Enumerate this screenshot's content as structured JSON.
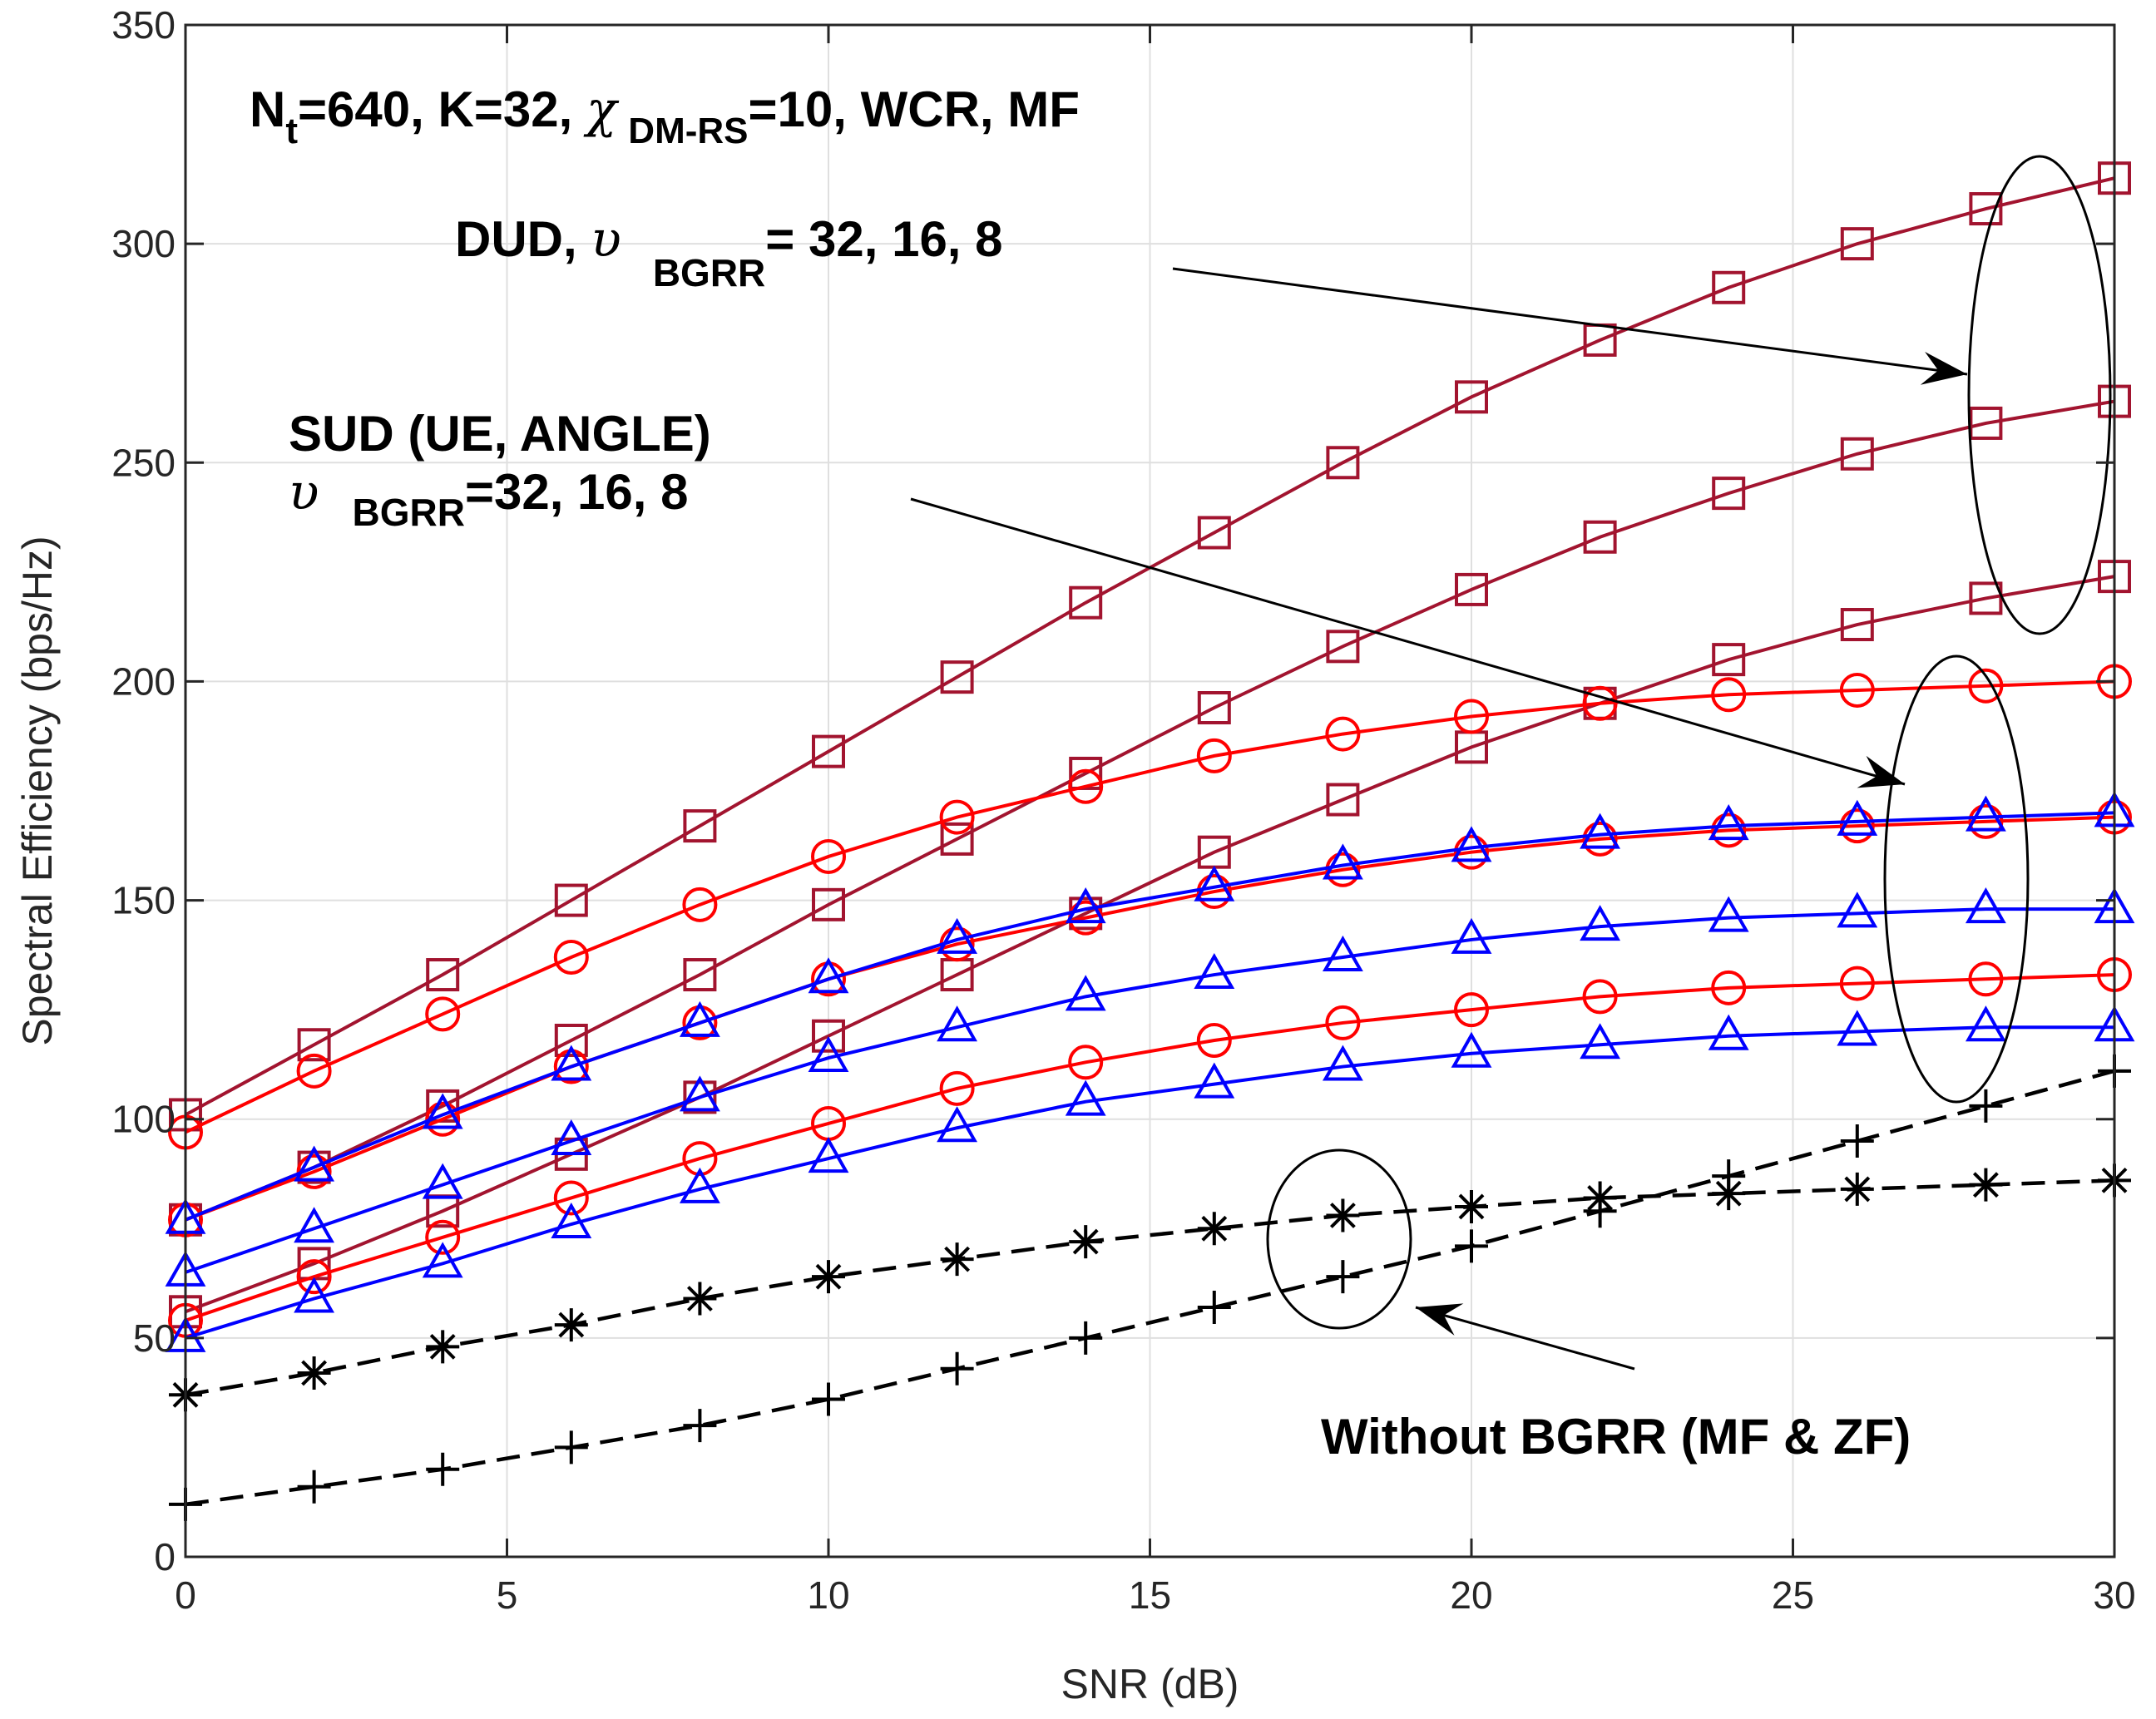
{
  "chart_data": {
    "type": "line",
    "xlabel": "SNR (dB)",
    "ylabel": "Spectral Efficiency (bps/Hz)",
    "xlim": [
      0,
      30
    ],
    "ylim": [
      0,
      350
    ],
    "xticks": [
      0,
      5,
      10,
      15,
      20,
      25,
      30
    ],
    "yticks": [
      0,
      50,
      100,
      150,
      200,
      250,
      300,
      350
    ],
    "ytick_labels": [
      "0",
      "50",
      "100",
      "150",
      "200",
      "250",
      "300",
      "350"
    ],
    "grid": true,
    "x": [
      0,
      2,
      4,
      6,
      8,
      10,
      12,
      14,
      16,
      18,
      20,
      22,
      24,
      26,
      28,
      30
    ],
    "series": [
      {
        "name": "DUD, v_BGRR=32",
        "color": "#a2142f",
        "marker": "square",
        "dash": "solid",
        "values": [
          101,
          117,
          133,
          150,
          167,
          184,
          201,
          218,
          234,
          250,
          265,
          278,
          290,
          300,
          308,
          315
        ]
      },
      {
        "name": "DUD, v_BGRR=16",
        "color": "#a2142f",
        "marker": "square",
        "dash": "solid",
        "values": [
          77,
          89,
          103,
          118,
          133,
          149,
          164,
          179,
          194,
          208,
          221,
          233,
          243,
          252,
          259,
          264
        ]
      },
      {
        "name": "DUD, v_BGRR=8",
        "color": "#a2142f",
        "marker": "square",
        "dash": "solid",
        "values": [
          56,
          67,
          79,
          92,
          105,
          119,
          133,
          147,
          161,
          173,
          185,
          195,
          205,
          213,
          219,
          224
        ]
      },
      {
        "name": "SUD (UE), v_BGRR=32",
        "color": "#ff0000",
        "marker": "circle",
        "dash": "solid",
        "values": [
          97,
          111,
          124,
          137,
          149,
          160,
          169,
          176,
          183,
          188,
          192,
          195,
          197,
          198,
          199,
          200
        ]
      },
      {
        "name": "SUD (UE), v_BGRR=16",
        "color": "#ff0000",
        "marker": "circle",
        "dash": "solid",
        "values": [
          77,
          88,
          100,
          112,
          122,
          132,
          140,
          146,
          152,
          157,
          161,
          164,
          166,
          167,
          168,
          169
        ]
      },
      {
        "name": "SUD (UE), v_BGRR=8",
        "color": "#ff0000",
        "marker": "circle",
        "dash": "solid",
        "values": [
          54,
          64,
          73,
          82,
          91,
          99,
          107,
          113,
          118,
          122,
          125,
          128,
          130,
          131,
          132,
          133
        ]
      },
      {
        "name": "SUD (ANGLE), v_BGRR=32",
        "color": "#0000ff",
        "marker": "triangle",
        "dash": "solid",
        "values": [
          77,
          89,
          101,
          112,
          122,
          132,
          141,
          148,
          153,
          158,
          162,
          165,
          167,
          168,
          169,
          170
        ]
      },
      {
        "name": "SUD (ANGLE), v_BGRR=16",
        "color": "#0000ff",
        "marker": "triangle",
        "dash": "solid",
        "values": [
          65,
          75,
          85,
          95,
          105,
          114,
          121,
          128,
          133,
          137,
          141,
          144,
          146,
          147,
          148,
          148
        ]
      },
      {
        "name": "SUD (ANGLE), v_BGRR=8",
        "color": "#0000ff",
        "marker": "triangle",
        "dash": "solid",
        "values": [
          50,
          59,
          67,
          76,
          84,
          91,
          98,
          104,
          108,
          112,
          115,
          117,
          119,
          120,
          121,
          121
        ]
      },
      {
        "name": "Without BGRR (MF)",
        "color": "#000000",
        "marker": "asterisk",
        "dash": "dashed",
        "values": [
          37,
          42,
          48,
          53,
          59,
          64,
          68,
          72,
          75,
          78,
          80,
          82,
          83,
          84,
          85,
          86
        ]
      },
      {
        "name": "Without BGRR (ZF)",
        "color": "#000000",
        "marker": "plus",
        "dash": "dashed",
        "values": [
          12,
          16,
          20,
          25,
          30,
          36,
          43,
          50,
          57,
          64,
          71,
          79,
          87,
          95,
          103,
          111
        ]
      }
    ],
    "annotations": {
      "setup": {
        "n": "N",
        "n_sub": "t",
        "part1": "=640, K=32, ",
        "chi": "χ",
        "chi_sub": "DM-RS",
        "part2": "=10, WCR, MF"
      },
      "dud": {
        "part1": "DUD, ",
        "upsilon": "υ",
        "sub": "BGRR",
        "part2": "= 32, 16, 8"
      },
      "sud_line1": "SUD (UE, ANGLE)",
      "sud_line2": {
        "upsilon": "υ",
        "sub": "BGRR",
        "part2": "=32, 16, 8"
      },
      "without": "Without BGRR (MF & ZF)"
    }
  }
}
